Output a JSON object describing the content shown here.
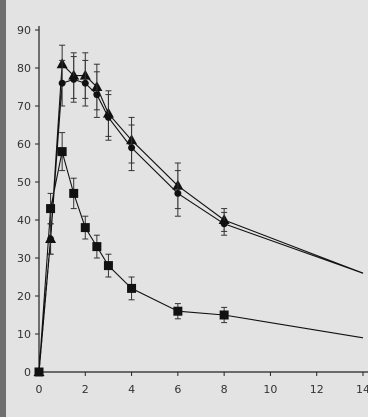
{
  "chart_data": {
    "type": "line",
    "title": "",
    "xlabel": "",
    "ylabel": "",
    "xlim": [
      0,
      14
    ],
    "ylim": [
      0,
      90
    ],
    "xticks": [
      0,
      2,
      4,
      6,
      8,
      10,
      12,
      14
    ],
    "yticks": [
      0,
      10,
      20,
      30,
      40,
      50,
      60,
      70,
      80,
      90
    ],
    "grid": false,
    "legend": "none",
    "series": [
      {
        "marker": "triangle",
        "color": "#111111",
        "x": [
          0,
          0.5,
          1,
          1.5,
          2,
          2.5,
          3,
          4,
          6,
          8,
          14
        ],
        "y": [
          0,
          35,
          81,
          78,
          78,
          75,
          68,
          61,
          49,
          40,
          26
        ],
        "err": [
          0,
          4,
          5,
          6,
          6,
          6,
          6,
          6,
          6,
          3,
          0
        ]
      },
      {
        "marker": "circle",
        "color": "#111111",
        "x": [
          0,
          0.5,
          1,
          1.5,
          2,
          2.5,
          3,
          4,
          6,
          8,
          14
        ],
        "y": [
          0,
          35,
          76,
          77,
          76,
          73,
          67,
          59,
          47,
          39,
          26
        ],
        "err": [
          0,
          4,
          6,
          6,
          6,
          6,
          6,
          6,
          6,
          3,
          0
        ]
      },
      {
        "marker": "square",
        "color": "#111111",
        "x": [
          0,
          0.5,
          1,
          1.5,
          2,
          2.5,
          3,
          4,
          6,
          8,
          14
        ],
        "y": [
          0,
          43,
          58,
          47,
          38,
          33,
          28,
          22,
          16,
          15,
          9
        ],
        "err": [
          0,
          4,
          5,
          4,
          3,
          3,
          3,
          3,
          2,
          2,
          0
        ]
      }
    ]
  }
}
